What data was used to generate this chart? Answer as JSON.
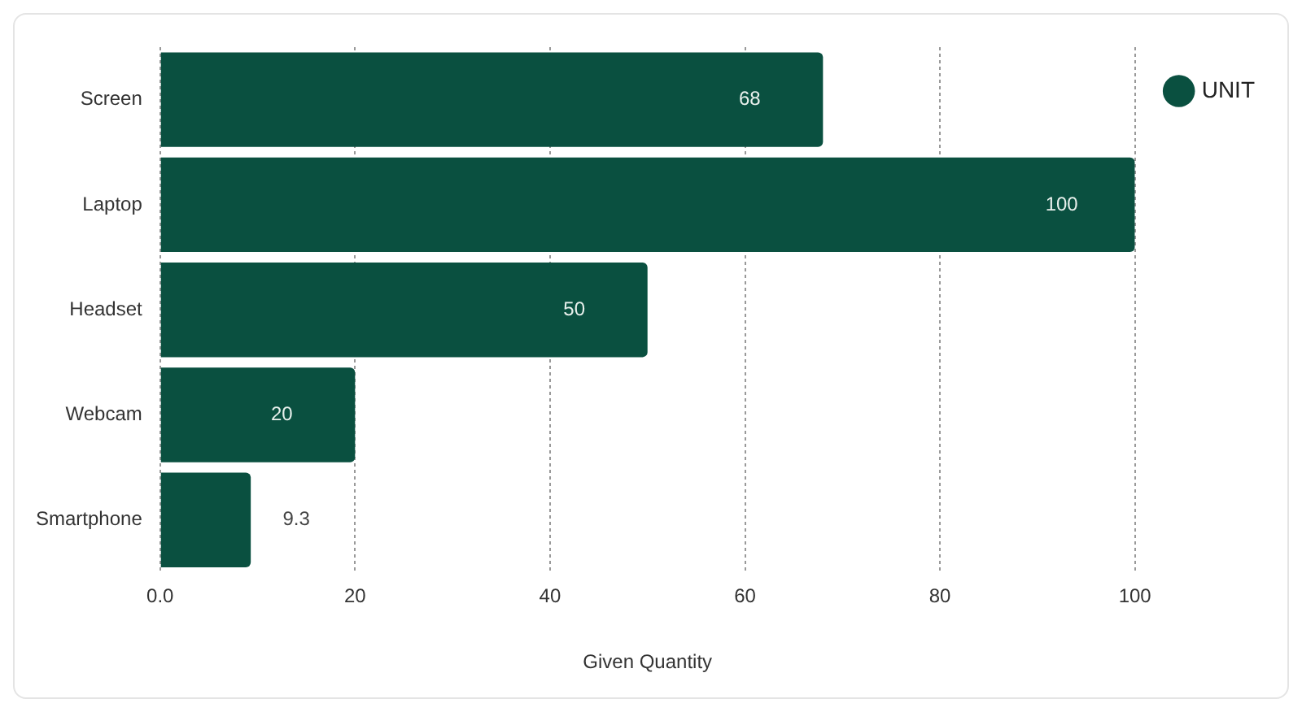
{
  "chart_data": {
    "type": "bar",
    "orientation": "horizontal",
    "categories": [
      "Screen",
      "Laptop",
      "Headset",
      "Webcam",
      "Smartphone"
    ],
    "series": [
      {
        "name": "UNIT",
        "color": "#0a5040",
        "values": [
          68,
          100,
          50,
          20,
          9.3
        ]
      }
    ],
    "xlabel": "Given Quantity",
    "xlim": [
      0,
      100
    ],
    "xticks": [
      {
        "value": 0,
        "label": "0.0"
      },
      20,
      40,
      60,
      80,
      100
    ],
    "grid": "x",
    "legend": "top right",
    "data_labels": true
  }
}
